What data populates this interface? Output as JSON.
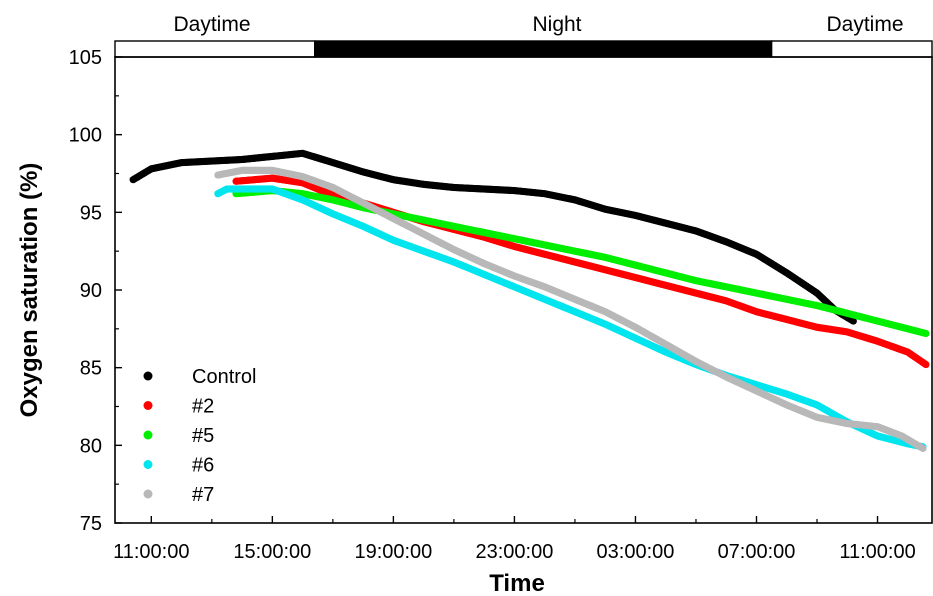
{
  "chart_data": {
    "type": "scatter",
    "title": "",
    "xlabel": "Time",
    "ylabel": "Oxygen saturation (%)",
    "x_unit": "hours since 11:00:00 (axis labelled by clock time)",
    "xlim": [
      -1.2,
      25.8
    ],
    "ylim": [
      75,
      105
    ],
    "xticks": [
      0,
      4,
      8,
      12,
      16,
      20,
      24
    ],
    "xtick_labels": [
      "11:00:00",
      "15:00:00",
      "19:00:00",
      "23:00:00",
      "03:00:00",
      "07:00:00",
      "11:00:00"
    ],
    "yticks": [
      75,
      80,
      85,
      90,
      95,
      100,
      105
    ],
    "ytick_labels": [
      "75",
      "80",
      "85",
      "90",
      "95",
      "100",
      "105"
    ],
    "grid": false,
    "legend_position": "bottom-left",
    "period_bar": [
      {
        "label": "Daytime",
        "start": -1.2,
        "end": 5.4,
        "color": "#ffffff"
      },
      {
        "label": "Night",
        "start": 5.4,
        "end": 20.5,
        "color": "#000000"
      },
      {
        "label": "Daytime",
        "start": 20.5,
        "end": 25.8,
        "color": "#ffffff"
      }
    ],
    "series": [
      {
        "name": "Control",
        "color": "#000000",
        "points": [
          [
            -0.6,
            97.1
          ],
          [
            0,
            97.8
          ],
          [
            1,
            98.2
          ],
          [
            2,
            98.3
          ],
          [
            3,
            98.4
          ],
          [
            4,
            98.6
          ],
          [
            5,
            98.8
          ],
          [
            6,
            98.2
          ],
          [
            7,
            97.6
          ],
          [
            8,
            97.1
          ],
          [
            9,
            96.8
          ],
          [
            10,
            96.6
          ],
          [
            11,
            96.5
          ],
          [
            12,
            96.4
          ],
          [
            13,
            96.2
          ],
          [
            14,
            95.8
          ],
          [
            15,
            95.2
          ],
          [
            16,
            94.8
          ],
          [
            17,
            94.3
          ],
          [
            18,
            93.8
          ],
          [
            19,
            93.1
          ],
          [
            20,
            92.3
          ],
          [
            21,
            91.1
          ],
          [
            22,
            89.8
          ],
          [
            22.6,
            88.7
          ],
          [
            23.2,
            88.0
          ]
        ]
      },
      {
        "name": "#2",
        "color": "#ff0000",
        "points": [
          [
            2.8,
            97.0
          ],
          [
            4,
            97.2
          ],
          [
            5,
            96.9
          ],
          [
            6,
            96.1
          ],
          [
            7,
            95.6
          ],
          [
            8,
            95.0
          ],
          [
            9,
            94.4
          ],
          [
            10,
            93.9
          ],
          [
            11,
            93.4
          ],
          [
            12,
            92.8
          ],
          [
            13,
            92.3
          ],
          [
            14,
            91.8
          ],
          [
            15,
            91.3
          ],
          [
            16,
            90.8
          ],
          [
            17,
            90.3
          ],
          [
            18,
            89.8
          ],
          [
            19,
            89.3
          ],
          [
            20,
            88.6
          ],
          [
            21,
            88.1
          ],
          [
            22,
            87.6
          ],
          [
            23,
            87.3
          ],
          [
            24,
            86.7
          ],
          [
            25,
            86.0
          ],
          [
            25.6,
            85.2
          ]
        ]
      },
      {
        "name": "#5",
        "color": "#00ee00",
        "points": [
          [
            2.8,
            96.2
          ],
          [
            4,
            96.4
          ],
          [
            5,
            96.2
          ],
          [
            6,
            95.8
          ],
          [
            7,
            95.3
          ],
          [
            8,
            94.9
          ],
          [
            9,
            94.5
          ],
          [
            10,
            94.1
          ],
          [
            11,
            93.7
          ],
          [
            12,
            93.3
          ],
          [
            13,
            92.9
          ],
          [
            14,
            92.5
          ],
          [
            15,
            92.1
          ],
          [
            16,
            91.6
          ],
          [
            17,
            91.1
          ],
          [
            18,
            90.6
          ],
          [
            19,
            90.2
          ],
          [
            20,
            89.8
          ],
          [
            21,
            89.4
          ],
          [
            22,
            89.0
          ],
          [
            23,
            88.5
          ],
          [
            24,
            88.0
          ],
          [
            25,
            87.5
          ],
          [
            25.6,
            87.2
          ]
        ]
      },
      {
        "name": "#6",
        "color": "#00e5ee",
        "points": [
          [
            2.2,
            96.2
          ],
          [
            2.5,
            96.5
          ],
          [
            3,
            96.5
          ],
          [
            4,
            96.5
          ],
          [
            5,
            95.8
          ],
          [
            6,
            94.9
          ],
          [
            7,
            94.1
          ],
          [
            8,
            93.2
          ],
          [
            9,
            92.5
          ],
          [
            10,
            91.8
          ],
          [
            11,
            91.0
          ],
          [
            12,
            90.2
          ],
          [
            13,
            89.4
          ],
          [
            14,
            88.6
          ],
          [
            15,
            87.8
          ],
          [
            16,
            86.9
          ],
          [
            17,
            86.0
          ],
          [
            18,
            85.2
          ],
          [
            19,
            84.5
          ],
          [
            20,
            83.9
          ],
          [
            21,
            83.3
          ],
          [
            22,
            82.6
          ],
          [
            23,
            81.5
          ],
          [
            24,
            80.6
          ],
          [
            25,
            80.1
          ],
          [
            25.5,
            79.9
          ]
        ]
      },
      {
        "name": "#7",
        "color": "#b8b8b8",
        "points": [
          [
            2.2,
            97.4
          ],
          [
            3,
            97.7
          ],
          [
            4,
            97.7
          ],
          [
            5,
            97.3
          ],
          [
            6,
            96.6
          ],
          [
            7,
            95.6
          ],
          [
            8,
            94.6
          ],
          [
            9,
            93.6
          ],
          [
            10,
            92.6
          ],
          [
            11,
            91.7
          ],
          [
            12,
            90.9
          ],
          [
            13,
            90.2
          ],
          [
            14,
            89.4
          ],
          [
            15,
            88.6
          ],
          [
            16,
            87.6
          ],
          [
            17,
            86.5
          ],
          [
            18,
            85.4
          ],
          [
            19,
            84.4
          ],
          [
            20,
            83.5
          ],
          [
            21,
            82.6
          ],
          [
            22,
            81.8
          ],
          [
            23,
            81.4
          ],
          [
            24,
            81.2
          ],
          [
            24.8,
            80.6
          ],
          [
            25.5,
            79.8
          ]
        ]
      }
    ]
  }
}
